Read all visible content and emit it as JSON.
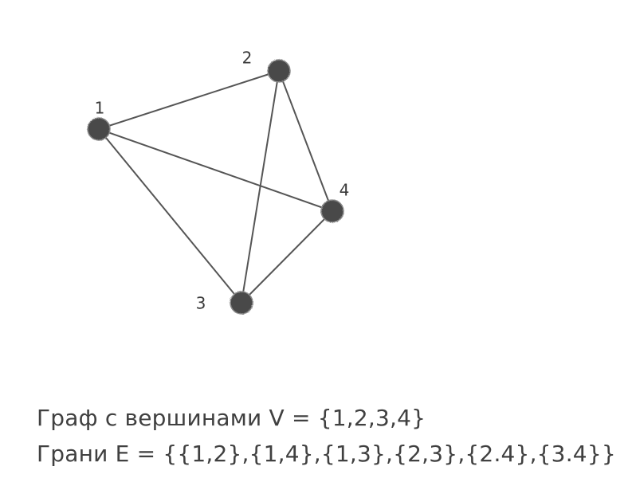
{
  "graph": {
    "nodes": [
      {
        "id": "1",
        "label": "1"
      },
      {
        "id": "2",
        "label": "2"
      },
      {
        "id": "3",
        "label": "3"
      },
      {
        "id": "4",
        "label": "4"
      }
    ],
    "edges": [
      [
        "1",
        "2"
      ],
      [
        "1",
        "4"
      ],
      [
        "1",
        "3"
      ],
      [
        "2",
        "3"
      ],
      [
        "2",
        "4"
      ],
      [
        "3",
        "4"
      ]
    ],
    "colors": {
      "node": "#4a4a4a",
      "edge": "#555555",
      "text": "#404040"
    }
  },
  "caption": {
    "vertices": "Граф с вершинами V = {1,2,3,4}",
    "edges": "Грани Е = {{1,2},{1,4},{1,3},{2,3},{2.4},{3.4}}"
  }
}
